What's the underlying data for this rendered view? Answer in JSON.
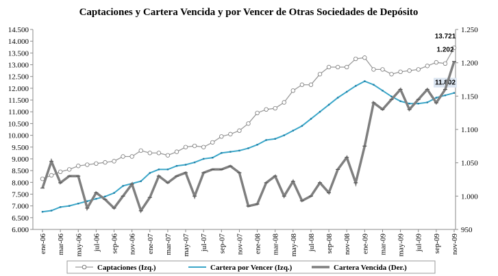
{
  "chart_data": {
    "type": "line",
    "title": "Captaciones y Cartera Vencida y por Vencer de Otras Sociedades de Depósito",
    "categories": [
      "ene-06",
      null,
      "mar-06",
      null,
      "may-06",
      null,
      "jul-06",
      null,
      "sep-06",
      null,
      "nov-06",
      null,
      "ene-07",
      null,
      "mar-07",
      null,
      "may-07",
      null,
      "jul-07",
      null,
      "sep-07",
      null,
      "nov-07",
      null,
      "ene-08",
      null,
      "mar-08",
      null,
      "may-08",
      null,
      "jul-08",
      null,
      "sep-08",
      null,
      "nov-08",
      null,
      "ene-09",
      null,
      "mar-09",
      null,
      "may-09",
      null,
      "jul-09",
      null,
      "sep-09",
      null,
      "nov-09"
    ],
    "series": [
      {
        "name": "Captaciones (Izq.)",
        "color": "#9a9a9a",
        "axis": "y",
        "values": [
          8150,
          8300,
          8450,
          8550,
          8700,
          8750,
          8800,
          8850,
          8900,
          9100,
          9100,
          9350,
          9250,
          9250,
          9150,
          9300,
          9500,
          9550,
          9500,
          9700,
          9950,
          10050,
          10200,
          10500,
          10950,
          11100,
          11150,
          11400,
          11900,
          12150,
          12150,
          12600,
          12900,
          12900,
          12900,
          13250,
          13300,
          12800,
          12800,
          12600,
          12700,
          12750,
          12800,
          12950,
          13100,
          13050,
          13721
        ],
        "value_labels": [
          null,
          null,
          null,
          null,
          null,
          null,
          null,
          null,
          null,
          null,
          null,
          null,
          null,
          null,
          null,
          null,
          null,
          null,
          null,
          null,
          null,
          null,
          null,
          null,
          null,
          null,
          null,
          null,
          null,
          null,
          null,
          null,
          null,
          null,
          null,
          null,
          null,
          null,
          null,
          null,
          null,
          null,
          null,
          null,
          null,
          null,
          "13.721"
        ]
      },
      {
        "name": "Cartera por Vencer (Izq.)",
        "color": "#3aa6c8",
        "axis": "y",
        "values": [
          6750,
          6800,
          6950,
          7000,
          7100,
          7200,
          7300,
          7400,
          7550,
          7850,
          7950,
          8050,
          8400,
          8550,
          8550,
          8700,
          8750,
          8850,
          9000,
          9050,
          9250,
          9300,
          9350,
          9450,
          9600,
          9800,
          9850,
          10000,
          10200,
          10400,
          10700,
          11000,
          11300,
          11600,
          11850,
          12100,
          12300,
          12150,
          11900,
          11650,
          11450,
          11350,
          11350,
          11400,
          11600,
          11700,
          11802
        ],
        "value_labels": [
          null,
          null,
          null,
          null,
          null,
          null,
          null,
          null,
          null,
          null,
          null,
          null,
          null,
          null,
          null,
          null,
          null,
          null,
          null,
          null,
          null,
          null,
          null,
          null,
          null,
          null,
          null,
          null,
          null,
          null,
          null,
          null,
          null,
          null,
          null,
          null,
          null,
          null,
          null,
          null,
          null,
          null,
          null,
          null,
          null,
          null,
          "11.802"
        ]
      },
      {
        "name": "Cartera Vencida (Der.)",
        "color": "#7f7f7f",
        "axis": "y2",
        "values": [
          1012,
          1052,
          1020,
          1030,
          1030,
          982,
          1005,
          995,
          982,
          1000,
          1018,
          978,
          998,
          1030,
          1020,
          1030,
          1035,
          1000,
          1035,
          1040,
          1040,
          1045,
          1035,
          985,
          988,
          1020,
          1030,
          1000,
          1022,
          993,
          1000,
          1020,
          1005,
          1040,
          1058,
          1020,
          1075,
          1140,
          1130,
          1145,
          1160,
          1130,
          1145,
          1160,
          1140,
          1160,
          1202
        ],
        "value_labels": [
          null,
          null,
          null,
          null,
          null,
          null,
          null,
          null,
          null,
          null,
          null,
          null,
          null,
          null,
          null,
          null,
          null,
          null,
          null,
          null,
          null,
          null,
          null,
          null,
          null,
          null,
          null,
          null,
          null,
          null,
          null,
          null,
          null,
          null,
          null,
          null,
          null,
          null,
          null,
          null,
          null,
          null,
          null,
          null,
          null,
          null,
          "1.202"
        ]
      }
    ],
    "ylim": [
      6000,
      14500
    ],
    "yticks": [
      {
        "value": 6000,
        "label": "6.000"
      },
      {
        "value": 6500,
        "label": "6.500"
      },
      {
        "value": 7000,
        "label": "7.000"
      },
      {
        "value": 7500,
        "label": "7.500"
      },
      {
        "value": 8000,
        "label": "8.000"
      },
      {
        "value": 8500,
        "label": "8.500"
      },
      {
        "value": 9000,
        "label": "9.000"
      },
      {
        "value": 9500,
        "label": "9.500"
      },
      {
        "value": 10000,
        "label": "10.000"
      },
      {
        "value": 10500,
        "label": "10.500"
      },
      {
        "value": 11000,
        "label": "11.000"
      },
      {
        "value": 11500,
        "label": "11.500"
      },
      {
        "value": 12000,
        "label": "12.000"
      },
      {
        "value": 12500,
        "label": "12.500"
      },
      {
        "value": 13000,
        "label": "13.000"
      },
      {
        "value": 13500,
        "label": "13.500"
      },
      {
        "value": 14000,
        "label": "14.000"
      },
      {
        "value": 14500,
        "label": "14.500"
      }
    ],
    "y2lim": [
      950,
      1250
    ],
    "y2ticks": [
      950,
      {
        "value": 1000,
        "label": "1.000"
      },
      {
        "value": 1050,
        "label": "1.050"
      },
      {
        "value": 1100,
        "label": "1.100"
      },
      {
        "value": 1150,
        "label": "1.150"
      },
      {
        "value": 1200,
        "label": "1.200"
      },
      {
        "value": 1250,
        "label": "1.250"
      }
    ],
    "legend": "bottom"
  }
}
